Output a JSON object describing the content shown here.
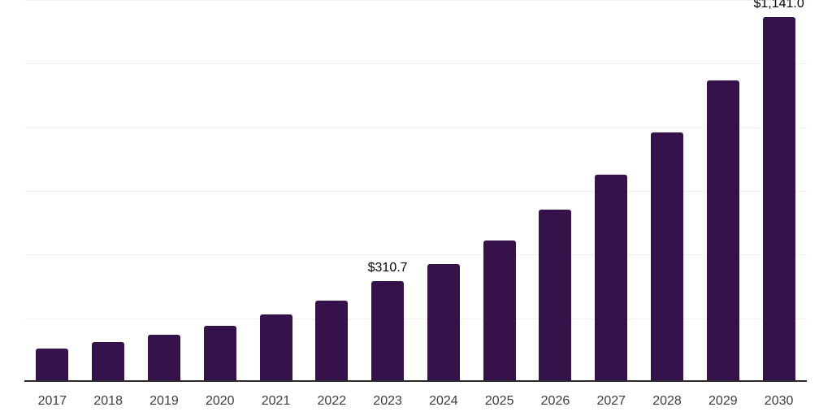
{
  "chart_data": {
    "type": "bar",
    "title": "",
    "xlabel": "",
    "ylabel": "",
    "categories": [
      "2017",
      "2018",
      "2019",
      "2020",
      "2021",
      "2022",
      "2023",
      "2024",
      "2025",
      "2026",
      "2027",
      "2028",
      "2029",
      "2030"
    ],
    "values": [
      100,
      121,
      144,
      171,
      207,
      249,
      310.7,
      366,
      438,
      536,
      646,
      778,
      942,
      1141.0
    ],
    "data_labels": [
      "",
      "",
      "",
      "",
      "",
      "",
      "$310.7",
      "",
      "",
      "",
      "",
      "",
      "",
      "$1,141.0"
    ],
    "ylim": [
      0,
      1200
    ],
    "gridline_interval": 200,
    "grid": true,
    "legend": false,
    "y_axis_labels_visible": false,
    "colors": {
      "bar": "#351249",
      "gridline": "#f1f1f1",
      "axis_line": "#2b2b2b",
      "x_tick_label": "#3d3d3d",
      "data_label": "#000000",
      "background": "#ffffff"
    }
  }
}
